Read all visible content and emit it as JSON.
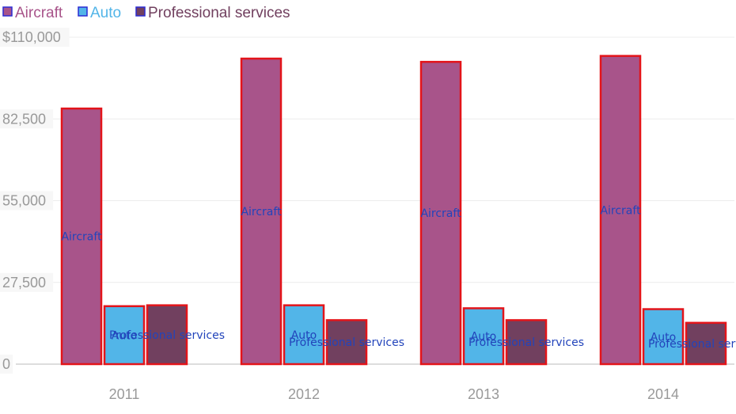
{
  "chart_data": {
    "type": "bar",
    "title": "",
    "xlabel": "",
    "ylabel": "",
    "categories": [
      "2011",
      "2012",
      "2013",
      "2014"
    ],
    "ylim": [
      0,
      110000
    ],
    "yticks": [
      "0",
      "27,500",
      "55,000",
      "82,500",
      "$110,000"
    ],
    "ytick_values": [
      0,
      27500,
      55000,
      82500,
      110000
    ],
    "grid": true,
    "legend_position": "top-left",
    "series": [
      {
        "name": "Aircraft",
        "color": "#a8548a",
        "values": [
          86000,
          102800,
          101700,
          103700
        ]
      },
      {
        "name": "Auto",
        "color": "#52b5e8",
        "values": [
          19500,
          19800,
          18800,
          18500
        ]
      },
      {
        "name": "Professional services",
        "color": "#71405f",
        "values": [
          19800,
          14800,
          14800,
          13900
        ]
      }
    ],
    "bar_labels": [
      {
        "category": "2011",
        "items": [
          "Aircraft",
          "Auto",
          "Professional services"
        ]
      },
      {
        "category": "2012",
        "items": [
          "Aircraft",
          "Auto",
          "Professional services"
        ]
      },
      {
        "category": "2013",
        "items": [
          "Aircraft",
          "Auto",
          "Professional services"
        ]
      },
      {
        "category": "2014",
        "items": [
          "Aircraft",
          "Auto",
          "Professional services"
        ]
      }
    ]
  },
  "legend": {
    "items": [
      {
        "label": "Aircraft",
        "color": "#a8548a",
        "text_color": "#a8548a"
      },
      {
        "label": "Auto",
        "color": "#52b5e8",
        "text_color": "#52b5e8"
      },
      {
        "label": "Professional services",
        "color": "#71405f",
        "text_color": "#71405f"
      }
    ]
  }
}
